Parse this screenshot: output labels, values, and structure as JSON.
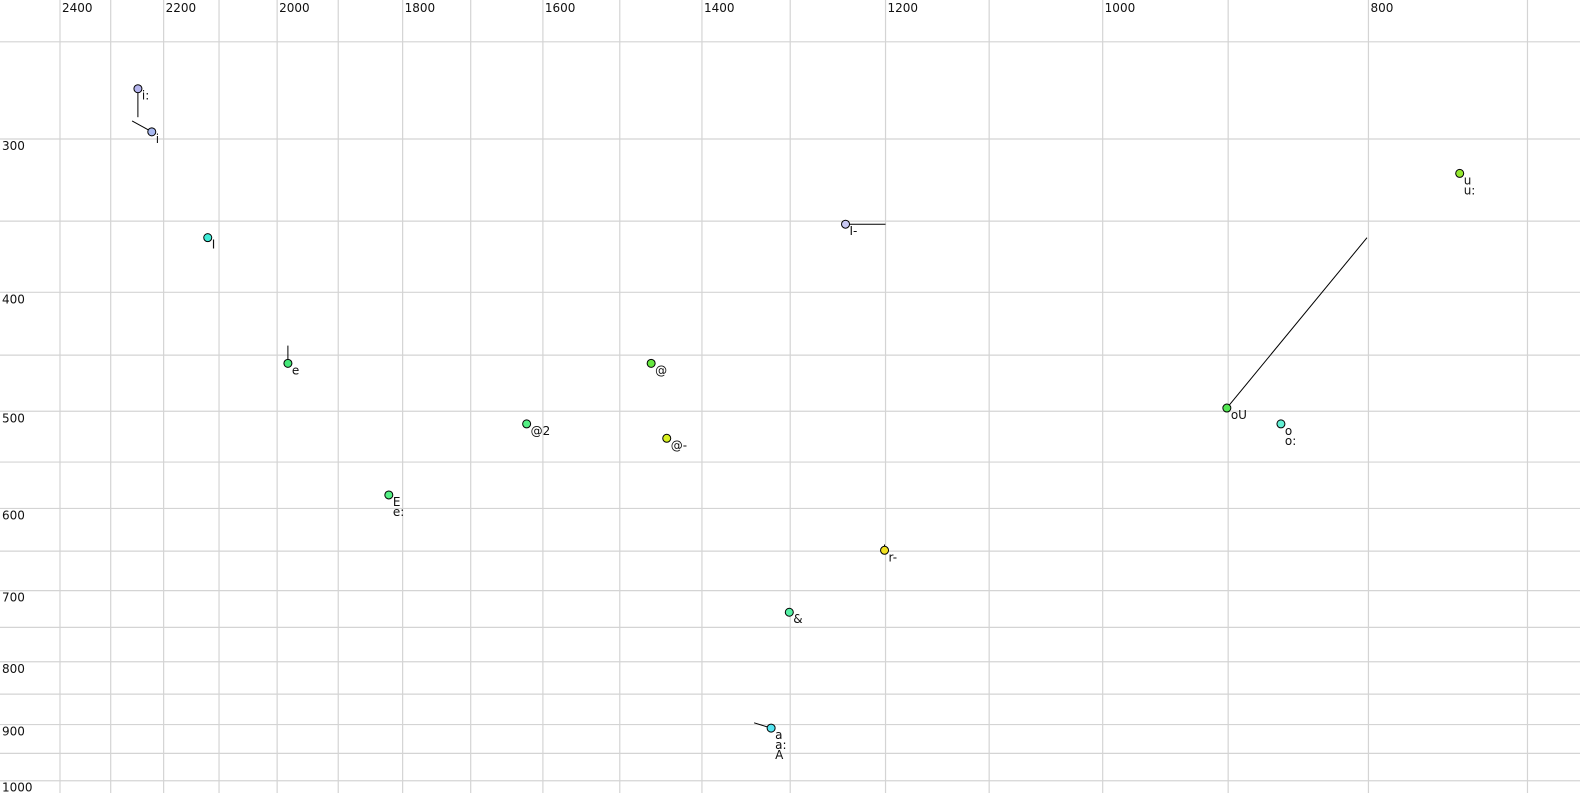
{
  "chart_data": {
    "type": "scatter",
    "title": "",
    "xlabel": "",
    "ylabel": "",
    "x_scale": "log",
    "y_scale": "log",
    "x_reversed": true,
    "xlim": [
      2400,
      700
    ],
    "ylim": [
      250,
      1000
    ],
    "grid": true,
    "x_gridlines": [
      2400,
      2300,
      2200,
      2100,
      2000,
      1900,
      1800,
      1700,
      1600,
      1500,
      1400,
      1300,
      1200,
      1100,
      1000,
      900,
      800,
      700
    ],
    "y_gridlines": [
      250,
      300,
      350,
      400,
      450,
      500,
      550,
      600,
      650,
      700,
      750,
      800,
      850,
      900,
      950,
      1000
    ],
    "x_tick_labels": [
      "2400",
      "2200",
      "2000",
      "1800",
      "1600",
      "1400",
      "1200",
      "1000",
      "800"
    ],
    "y_tick_labels": [
      "300",
      "400",
      "500",
      "600",
      "700",
      "800",
      "900",
      "1000"
    ],
    "points": [
      {
        "labels": [
          "i:"
        ],
        "f2": 2248,
        "f1": 273,
        "color": "#b4b4ee",
        "trajectory": [
          [
            2248,
            273
          ],
          [
            2248,
            288
          ]
        ]
      },
      {
        "labels": [
          "i"
        ],
        "f2": 2222,
        "f1": 296,
        "color": "#a8b8f0",
        "trajectory": [
          [
            2222,
            296
          ],
          [
            2259,
            290
          ]
        ]
      },
      {
        "labels": [
          "I"
        ],
        "f2": 2120,
        "f1": 361,
        "color": "#40ecd8",
        "trajectory": []
      },
      {
        "labels": [
          "e"
        ],
        "f2": 1982,
        "f1": 457,
        "color": "#44e878",
        "trajectory": [
          [
            1982,
            457
          ],
          [
            1982,
            442
          ]
        ]
      },
      {
        "labels": [
          "E",
          "e:"
        ],
        "f2": 1821,
        "f1": 585,
        "color": "#54f084",
        "trajectory": []
      },
      {
        "labels": [
          "@2"
        ],
        "f2": 1622,
        "f1": 512,
        "color": "#54f084",
        "trajectory": []
      },
      {
        "labels": [
          "@"
        ],
        "f2": 1461,
        "f1": 457,
        "color": "#66e840",
        "trajectory": []
      },
      {
        "labels": [
          "@-"
        ],
        "f2": 1442,
        "f1": 526,
        "color": "#d8f020",
        "trajectory": []
      },
      {
        "labels": [
          "I-"
        ],
        "f2": 1241,
        "f1": 352,
        "color": "#c8c8f2",
        "trajectory": [
          [
            1241,
            352
          ],
          [
            1200,
            352
          ]
        ]
      },
      {
        "labels": [
          "r-"
        ],
        "f2": 1201,
        "f1": 649,
        "color": "#f0e020",
        "trajectory": [
          [
            1201,
            649
          ],
          [
            1201,
            642
          ]
        ]
      },
      {
        "labels": [
          "&"
        ],
        "f2": 1301,
        "f1": 729,
        "color": "#54f0a4",
        "trajectory": []
      },
      {
        "labels": [
          "a",
          "a:",
          "A"
        ],
        "f2": 1321,
        "f1": 906,
        "color": "#54e4f0",
        "trajectory": [
          [
            1321,
            906
          ],
          [
            1340,
            897
          ]
        ]
      },
      {
        "labels": [
          "oU"
        ],
        "f2": 901,
        "f1": 497,
        "color": "#54e854",
        "trajectory": [
          [
            901,
            497
          ],
          [
            801,
            361
          ]
        ]
      },
      {
        "labels": [
          "o",
          "o:"
        ],
        "f2": 861,
        "f1": 512,
        "color": "#64f0d4",
        "trajectory": []
      },
      {
        "labels": [
          "u",
          "u:"
        ],
        "f2": 741,
        "f1": 320,
        "color": "#94e830",
        "trajectory": []
      }
    ]
  }
}
